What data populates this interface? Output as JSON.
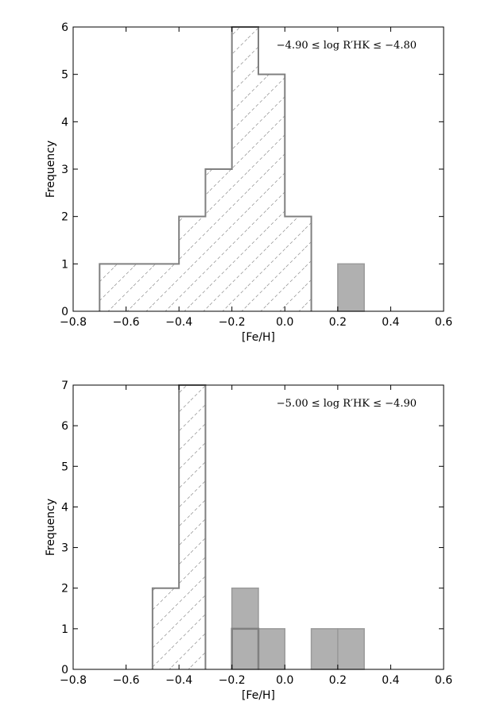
{
  "chart_data": [
    {
      "type": "histogram",
      "annotation": "−4.90 ≤ log R′HK ≤ −4.80",
      "xlabel": "[Fe/H]",
      "ylabel": "Frequency",
      "xlim": [
        -0.8,
        0.6
      ],
      "ylim": [
        0,
        6
      ],
      "xticks": [
        -0.8,
        -0.6,
        -0.4,
        -0.2,
        0.0,
        0.2,
        0.4,
        0.6
      ],
      "xtick_labels": [
        "−0.8",
        "−0.6",
        "−0.4",
        "−0.2",
        "0.0",
        "0.2",
        "0.4",
        "0.6"
      ],
      "yticks": [
        0,
        1,
        2,
        3,
        4,
        5,
        6
      ],
      "ytick_labels": [
        "0",
        "1",
        "2",
        "3",
        "4",
        "5",
        "6"
      ],
      "grid": false,
      "series": [
        {
          "style": "hatched step outline",
          "color": "#808080",
          "bins": [
            {
              "x0": -0.7,
              "x1": -0.4,
              "value": 1
            },
            {
              "x0": -0.4,
              "x1": -0.3,
              "value": 2
            },
            {
              "x0": -0.3,
              "x1": -0.2,
              "value": 3
            },
            {
              "x0": -0.2,
              "x1": -0.1,
              "value": 6
            },
            {
              "x0": -0.1,
              "x1": 0.0,
              "value": 5
            },
            {
              "x0": 0.0,
              "x1": 0.1,
              "value": 2
            }
          ]
        },
        {
          "style": "filled gray",
          "color": "#b0b0b0",
          "bins": [
            {
              "x0": 0.2,
              "x1": 0.3,
              "value": 1
            }
          ]
        }
      ]
    },
    {
      "type": "histogram",
      "annotation": "−5.00 ≤ log R′HK ≤ −4.90",
      "xlabel": "[Fe/H]",
      "ylabel": "Frequency",
      "xlim": [
        -0.8,
        0.6
      ],
      "ylim": [
        0,
        7
      ],
      "xticks": [
        -0.8,
        -0.6,
        -0.4,
        -0.2,
        0.0,
        0.2,
        0.4,
        0.6
      ],
      "xtick_labels": [
        "−0.8",
        "−0.6",
        "−0.4",
        "−0.2",
        "0.0",
        "0.2",
        "0.4",
        "0.6"
      ],
      "yticks": [
        0,
        1,
        2,
        3,
        4,
        5,
        6,
        7
      ],
      "ytick_labels": [
        "0",
        "1",
        "2",
        "3",
        "4",
        "5",
        "6",
        "7"
      ],
      "grid": false,
      "series": [
        {
          "style": "hatched step outline",
          "color": "#808080",
          "bins": [
            {
              "x0": -0.5,
              "x1": -0.4,
              "value": 2
            },
            {
              "x0": -0.4,
              "x1": -0.3,
              "value": 7
            }
          ]
        },
        {
          "style": "filled gray",
          "color": "#b0b0b0",
          "bins": [
            {
              "x0": -0.2,
              "x1": -0.1,
              "value": 2
            },
            {
              "x0": -0.1,
              "x1": 0.0,
              "value": 1
            },
            {
              "x0": 0.1,
              "x1": 0.2,
              "value": 1
            },
            {
              "x0": 0.2,
              "x1": 0.3,
              "value": 1
            }
          ]
        },
        {
          "style": "step outline",
          "color": "#808080",
          "bins": [
            {
              "x0": -0.2,
              "x1": -0.1,
              "value": 1
            }
          ]
        }
      ]
    }
  ]
}
